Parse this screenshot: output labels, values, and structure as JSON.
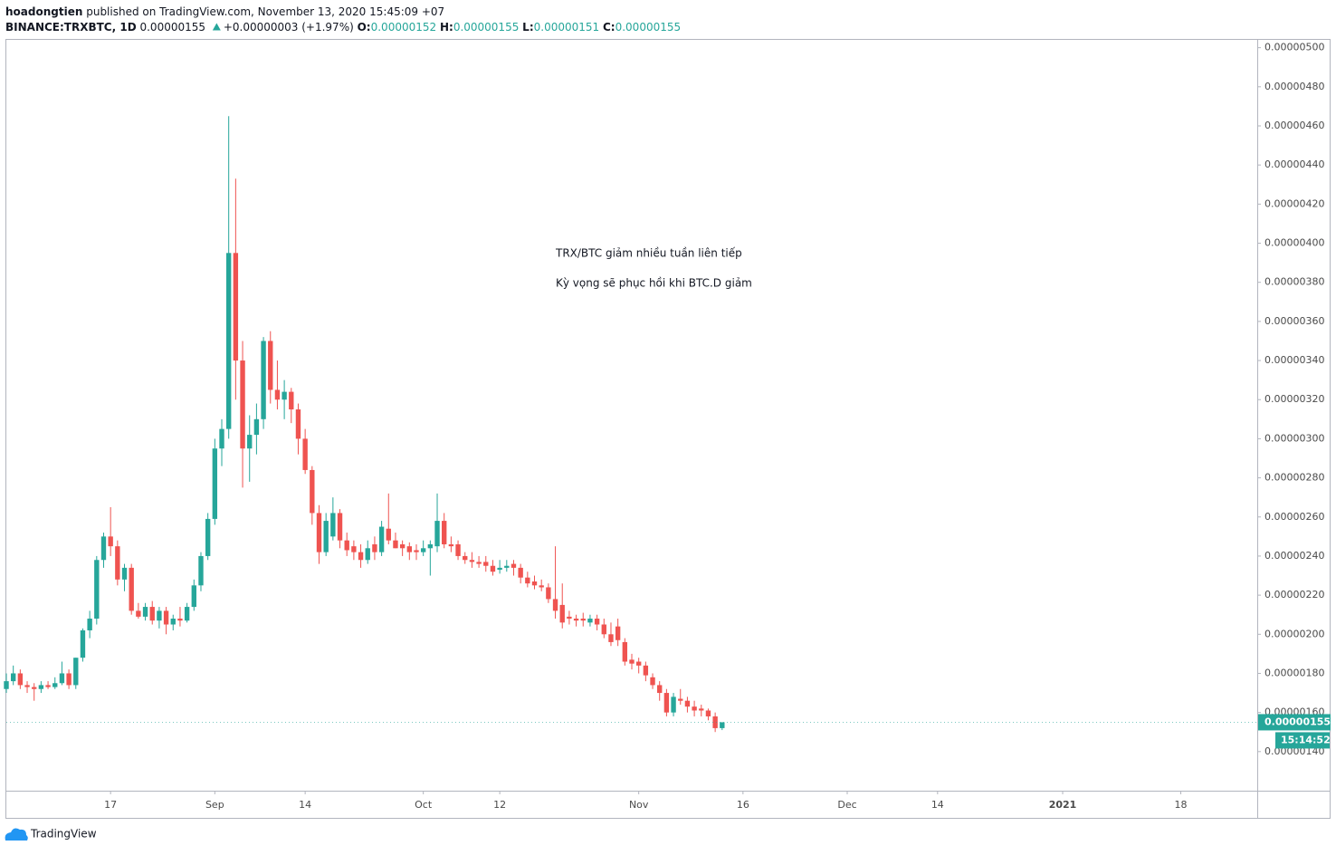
{
  "header": {
    "author": "hoadongtien",
    "published": "published on TradingView.com, November 13, 2020 15:45:09 +07",
    "symbol": "BINANCE:TRXBTC, 1D",
    "last": "0.00000155",
    "change": "+0.00000003 (+1.97%)",
    "o_label": "O:",
    "o": "0.00000152",
    "h_label": "H:",
    "h": "0.00000155",
    "l_label": "L:",
    "l": "0.00000151",
    "c_label": "C:",
    "c": "0.00000155"
  },
  "footer": {
    "brand": "TradingView"
  },
  "chart_data": {
    "type": "candlestick",
    "up_color": "#26a69a",
    "down_color": "#ef5350",
    "grid": false,
    "annotations": [
      "TRX/BTC giảm nhiều tuần liên tiếp",
      "Kỳ vọng sẽ phục hồi khi BTC.D giảm"
    ],
    "annotation_color": "#1a1aff",
    "price_badge": "0.00000155",
    "countdown": "15:14:52",
    "x": [
      "2020-08-02",
      "2020-08-03",
      "2020-08-04",
      "2020-08-05",
      "2020-08-06",
      "2020-08-07",
      "2020-08-08",
      "2020-08-09",
      "2020-08-10",
      "2020-08-11",
      "2020-08-12",
      "2020-08-13",
      "2020-08-14",
      "2020-08-15",
      "2020-08-16",
      "2020-08-17",
      "2020-08-18",
      "2020-08-19",
      "2020-08-20",
      "2020-08-21",
      "2020-08-22",
      "2020-08-23",
      "2020-08-24",
      "2020-08-25",
      "2020-08-26",
      "2020-08-27",
      "2020-08-28",
      "2020-08-29",
      "2020-08-30",
      "2020-08-31",
      "2020-09-01",
      "2020-09-02",
      "2020-09-03",
      "2020-09-04",
      "2020-09-05",
      "2020-09-06",
      "2020-09-07",
      "2020-09-08",
      "2020-09-09",
      "2020-09-10",
      "2020-09-11",
      "2020-09-12",
      "2020-09-13",
      "2020-09-14",
      "2020-09-15",
      "2020-09-16",
      "2020-09-17",
      "2020-09-18",
      "2020-09-19",
      "2020-09-20",
      "2020-09-21",
      "2020-09-22",
      "2020-09-23",
      "2020-09-24",
      "2020-09-25",
      "2020-09-26",
      "2020-09-27",
      "2020-09-28",
      "2020-09-29",
      "2020-09-30",
      "2020-10-01",
      "2020-10-02",
      "2020-10-03",
      "2020-10-04",
      "2020-10-05",
      "2020-10-06",
      "2020-10-07",
      "2020-10-08",
      "2020-10-09",
      "2020-10-10",
      "2020-10-11",
      "2020-10-12",
      "2020-10-13",
      "2020-10-14",
      "2020-10-15",
      "2020-10-16",
      "2020-10-17",
      "2020-10-18",
      "2020-10-19",
      "2020-10-20",
      "2020-10-21",
      "2020-10-22",
      "2020-10-23",
      "2020-10-24",
      "2020-10-25",
      "2020-10-26",
      "2020-10-27",
      "2020-10-28",
      "2020-10-29",
      "2020-10-30",
      "2020-10-31",
      "2020-11-01",
      "2020-11-02",
      "2020-11-03",
      "2020-11-04",
      "2020-11-05",
      "2020-11-06",
      "2020-11-07",
      "2020-11-08",
      "2020-11-09",
      "2020-11-10",
      "2020-11-11",
      "2020-11-12",
      "2020-11-13"
    ],
    "open": [
      1.72e-06,
      1.76e-06,
      1.8e-06,
      1.74e-06,
      1.73e-06,
      1.72e-06,
      1.74e-06,
      1.73e-06,
      1.75e-06,
      1.8e-06,
      1.74e-06,
      1.88e-06,
      2.02e-06,
      2.08e-06,
      2.38e-06,
      2.5e-06,
      2.45e-06,
      2.28e-06,
      2.34e-06,
      2.12e-06,
      2.09e-06,
      2.14e-06,
      2.07e-06,
      2.12e-06,
      2.05e-06,
      2.08e-06,
      2.07e-06,
      2.14e-06,
      2.25e-06,
      2.4e-06,
      2.59e-06,
      2.95e-06,
      3.05e-06,
      3.95e-06,
      3.4e-06,
      2.95e-06,
      3.02e-06,
      3.1e-06,
      3.5e-06,
      3.25e-06,
      3.2e-06,
      3.24e-06,
      3.15e-06,
      3e-06,
      2.84e-06,
      2.62e-06,
      2.42e-06,
      2.5e-06,
      2.62e-06,
      2.48e-06,
      2.45e-06,
      2.42e-06,
      2.38e-06,
      2.46e-06,
      2.42e-06,
      2.54e-06,
      2.48e-06,
      2.46e-06,
      2.45e-06,
      2.43e-06,
      2.42e-06,
      2.44e-06,
      2.45e-06,
      2.58e-06,
      2.46e-06,
      2.46e-06,
      2.4e-06,
      2.38e-06,
      2.37e-06,
      2.37e-06,
      2.35e-06,
      2.33e-06,
      2.34e-06,
      2.36e-06,
      2.34e-06,
      2.29e-06,
      2.27e-06,
      2.25e-06,
      2.24e-06,
      2.18e-06,
      2.15e-06,
      2.09e-06,
      2.08e-06,
      2.08e-06,
      2.06e-06,
      2.08e-06,
      2.05e-06,
      2e-06,
      2.04e-06,
      1.96e-06,
      1.87e-06,
      1.86e-06,
      1.84e-06,
      1.78e-06,
      1.74e-06,
      1.7e-06,
      1.6e-06,
      1.67e-06,
      1.66e-06,
      1.63e-06,
      1.62e-06,
      1.61e-06,
      1.58e-06,
      1.52e-06
    ],
    "high": [
      1.8e-06,
      1.84e-06,
      1.82e-06,
      1.76e-06,
      1.75e-06,
      1.76e-06,
      1.76e-06,
      1.78e-06,
      1.86e-06,
      1.82e-06,
      1.88e-06,
      2.03e-06,
      2.12e-06,
      2.4e-06,
      2.52e-06,
      2.65e-06,
      2.48e-06,
      2.36e-06,
      2.36e-06,
      2.16e-06,
      2.16e-06,
      2.17e-06,
      2.14e-06,
      2.14e-06,
      2.1e-06,
      2.14e-06,
      2.16e-06,
      2.28e-06,
      2.42e-06,
      2.62e-06,
      3e-06,
      3.1e-06,
      4.65e-06,
      4.33e-06,
      3.5e-06,
      3.12e-06,
      3.18e-06,
      3.52e-06,
      3.55e-06,
      3.4e-06,
      3.3e-06,
      3.26e-06,
      3.18e-06,
      3.05e-06,
      2.86e-06,
      2.66e-06,
      2.62e-06,
      2.7e-06,
      2.64e-06,
      2.52e-06,
      2.48e-06,
      2.46e-06,
      2.48e-06,
      2.5e-06,
      2.58e-06,
      2.72e-06,
      2.52e-06,
      2.48e-06,
      2.47e-06,
      2.46e-06,
      2.48e-06,
      2.48e-06,
      2.72e-06,
      2.62e-06,
      2.5e-06,
      2.48e-06,
      2.42e-06,
      2.42e-06,
      2.4e-06,
      2.4e-06,
      2.38e-06,
      2.38e-06,
      2.38e-06,
      2.38e-06,
      2.36e-06,
      2.32e-06,
      2.3e-06,
      2.28e-06,
      2.26e-06,
      2.45e-06,
      2.26e-06,
      2.12e-06,
      2.1e-06,
      2.11e-06,
      2.1e-06,
      2.1e-06,
      2.08e-06,
      2.06e-06,
      2.08e-06,
      1.98e-06,
      1.9e-06,
      1.88e-06,
      1.86e-06,
      1.8e-06,
      1.76e-06,
      1.72e-06,
      1.7e-06,
      1.72e-06,
      1.68e-06,
      1.66e-06,
      1.64e-06,
      1.62e-06,
      1.6e-06,
      1.55e-06
    ],
    "low": [
      1.7e-06,
      1.74e-06,
      1.72e-06,
      1.7e-06,
      1.66e-06,
      1.7e-06,
      1.72e-06,
      1.72e-06,
      1.74e-06,
      1.72e-06,
      1.72e-06,
      1.86e-06,
      1.98e-06,
      2.05e-06,
      2.34e-06,
      2.4e-06,
      2.25e-06,
      2.22e-06,
      2.1e-06,
      2.08e-06,
      2.07e-06,
      2.05e-06,
      2.03e-06,
      2e-06,
      2.02e-06,
      2.04e-06,
      2.06e-06,
      2.12e-06,
      2.22e-06,
      2.38e-06,
      2.56e-06,
      2.86e-06,
      3e-06,
      3.2e-06,
      2.75e-06,
      2.78e-06,
      2.92e-06,
      3.05e-06,
      3.18e-06,
      3.15e-06,
      3.1e-06,
      3.08e-06,
      2.92e-06,
      2.82e-06,
      2.56e-06,
      2.36e-06,
      2.4e-06,
      2.48e-06,
      2.44e-06,
      2.4e-06,
      2.38e-06,
      2.34e-06,
      2.36e-06,
      2.38e-06,
      2.4e-06,
      2.46e-06,
      2.44e-06,
      2.4e-06,
      2.38e-06,
      2.38e-06,
      2.4e-06,
      2.3e-06,
      2.42e-06,
      2.44e-06,
      2.42e-06,
      2.38e-06,
      2.36e-06,
      2.34e-06,
      2.34e-06,
      2.32e-06,
      2.3e-06,
      2.31e-06,
      2.32e-06,
      2.3e-06,
      2.26e-06,
      2.24e-06,
      2.23e-06,
      2.22e-06,
      2.16e-06,
      2.08e-06,
      2.03e-06,
      2.05e-06,
      2.04e-06,
      2.04e-06,
      2.04e-06,
      2.02e-06,
      1.98e-06,
      1.94e-06,
      1.94e-06,
      1.84e-06,
      1.82e-06,
      1.8e-06,
      1.76e-06,
      1.72e-06,
      1.66e-06,
      1.58e-06,
      1.58e-06,
      1.64e-06,
      1.6e-06,
      1.58e-06,
      1.58e-06,
      1.56e-06,
      1.5e-06,
      1.51e-06
    ],
    "close": [
      1.76e-06,
      1.8e-06,
      1.74e-06,
      1.73e-06,
      1.72e-06,
      1.74e-06,
      1.73e-06,
      1.75e-06,
      1.8e-06,
      1.74e-06,
      1.88e-06,
      2.02e-06,
      2.08e-06,
      2.38e-06,
      2.5e-06,
      2.45e-06,
      2.28e-06,
      2.34e-06,
      2.12e-06,
      2.09e-06,
      2.14e-06,
      2.07e-06,
      2.12e-06,
      2.05e-06,
      2.08e-06,
      2.07e-06,
      2.14e-06,
      2.25e-06,
      2.4e-06,
      2.59e-06,
      2.95e-06,
      3.05e-06,
      3.95e-06,
      3.4e-06,
      2.95e-06,
      3.02e-06,
      3.1e-06,
      3.5e-06,
      3.25e-06,
      3.2e-06,
      3.24e-06,
      3.15e-06,
      3e-06,
      2.84e-06,
      2.62e-06,
      2.42e-06,
      2.58e-06,
      2.62e-06,
      2.48e-06,
      2.43e-06,
      2.42e-06,
      2.38e-06,
      2.44e-06,
      2.42e-06,
      2.55e-06,
      2.48e-06,
      2.44e-06,
      2.44e-06,
      2.42e-06,
      2.42e-06,
      2.44e-06,
      2.46e-06,
      2.58e-06,
      2.46e-06,
      2.45e-06,
      2.4e-06,
      2.38e-06,
      2.37e-06,
      2.36e-06,
      2.35e-06,
      2.32e-06,
      2.34e-06,
      2.35e-06,
      2.34e-06,
      2.29e-06,
      2.26e-06,
      2.25e-06,
      2.24e-06,
      2.18e-06,
      2.12e-06,
      2.06e-06,
      2.08e-06,
      2.07e-06,
      2.07e-06,
      2.08e-06,
      2.05e-06,
      2e-06,
      1.96e-06,
      1.97e-06,
      1.86e-06,
      1.85e-06,
      1.84e-06,
      1.79e-06,
      1.74e-06,
      1.7e-06,
      1.6e-06,
      1.68e-06,
      1.66e-06,
      1.63e-06,
      1.61e-06,
      1.61e-06,
      1.58e-06,
      1.52e-06,
      1.55e-06
    ],
    "xlim": [
      "2020-08-02",
      "2021-01-29"
    ],
    "xticks": [
      {
        "value": "2020-08-17",
        "label": "17"
      },
      {
        "value": "2020-09-01",
        "label": "Sep"
      },
      {
        "value": "2020-09-14",
        "label": "14"
      },
      {
        "value": "2020-10-01",
        "label": "Oct"
      },
      {
        "value": "2020-10-12",
        "label": "12"
      },
      {
        "value": "2020-11-01",
        "label": "Nov"
      },
      {
        "value": "2020-11-16",
        "label": "16"
      },
      {
        "value": "2020-12-01",
        "label": "Dec"
      },
      {
        "value": "2020-12-14",
        "label": "14"
      },
      {
        "value": "2021-01-01",
        "label": "2021"
      },
      {
        "value": "2021-01-18",
        "label": "18"
      }
    ],
    "ylim": [
      1.2e-06,
      5.04e-06
    ],
    "yticks": [
      {
        "value": 1.4e-06,
        "label": "0.00000140"
      },
      {
        "value": 1.6e-06,
        "label": "0.00000160"
      },
      {
        "value": 1.8e-06,
        "label": "0.00000180"
      },
      {
        "value": 2e-06,
        "label": "0.00000200"
      },
      {
        "value": 2.2e-06,
        "label": "0.00000220"
      },
      {
        "value": 2.4e-06,
        "label": "0.00000240"
      },
      {
        "value": 2.6e-06,
        "label": "0.00000260"
      },
      {
        "value": 2.8e-06,
        "label": "0.00000280"
      },
      {
        "value": 3e-06,
        "label": "0.00000300"
      },
      {
        "value": 3.2e-06,
        "label": "0.00000320"
      },
      {
        "value": 3.4e-06,
        "label": "0.00000340"
      },
      {
        "value": 3.6e-06,
        "label": "0.00000360"
      },
      {
        "value": 3.8e-06,
        "label": "0.00000380"
      },
      {
        "value": 4e-06,
        "label": "0.00000400"
      },
      {
        "value": 4.2e-06,
        "label": "0.00000420"
      },
      {
        "value": 4.4e-06,
        "label": "0.00000440"
      },
      {
        "value": 4.6e-06,
        "label": "0.00000460"
      },
      {
        "value": 4.8e-06,
        "label": "0.00000480"
      },
      {
        "value": 5e-06,
        "label": "0.00000500"
      }
    ]
  }
}
